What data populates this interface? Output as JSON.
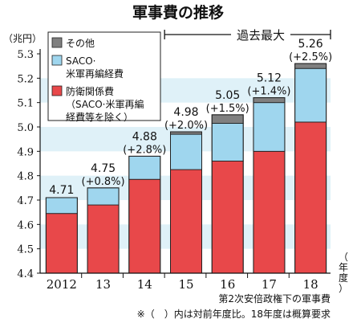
{
  "chart_data": {
    "type": "bar",
    "title": "軍事費の推移",
    "ylabel": "（兆円）",
    "xlabel": "（年度）",
    "ylim": [
      4.4,
      5.3
    ],
    "yticks": [
      "4.4",
      "4.5",
      "4.6",
      "4.7",
      "4.8",
      "4.9",
      "5.0",
      "5.1",
      "5.2",
      "5.3"
    ],
    "categories": [
      "2012",
      "13",
      "14",
      "15",
      "16",
      "17",
      "18"
    ],
    "totals": [
      4.71,
      4.75,
      4.88,
      4.98,
      5.05,
      5.12,
      5.26
    ],
    "value_labels": [
      "4.71",
      "4.75",
      "4.88",
      "4.98",
      "5.05",
      "5.12",
      "5.26"
    ],
    "change_labels": [
      "",
      "(+0.8%)",
      "(+2.8%)",
      "(+2.0%)",
      "(+1.5%)",
      "(+1.4%)",
      "(+2.5%)"
    ],
    "series": [
      {
        "name": "防衛関係費（SACO·米軍再編経費等を除く）",
        "color": "#e8484a",
        "values": [
          4.645,
          4.68,
          4.785,
          4.825,
          4.86,
          4.9,
          5.02
        ]
      },
      {
        "name": "SACO·米軍再編経費",
        "color": "#9fd6ee",
        "values": [
          0.065,
          0.07,
          0.095,
          0.145,
          0.155,
          0.2,
          0.22
        ]
      },
      {
        "name": "その他",
        "color": "#808080",
        "values": [
          0.0,
          0.0,
          0.0,
          0.01,
          0.035,
          0.02,
          0.02
        ]
      }
    ],
    "legend": {
      "placement": "top-left",
      "items": [
        {
          "lines": [
            "その他"
          ],
          "color": "#808080"
        },
        {
          "lines": [
            "SACO·",
            "米軍再編経費"
          ],
          "color": "#9fd6ee"
        },
        {
          "lines": [
            "防衛関係費",
            "（SACO·米軍再編",
            "経費等を除く）"
          ],
          "color": "#e8484a"
        }
      ]
    },
    "annotations": {
      "period_label": "過去最大",
      "era_label": "第2次安倍政権下の軍事費",
      "note": "※（　）内は対前年度比。18年度は概算要求"
    },
    "band_color": "#dff1f8",
    "grid": true
  }
}
